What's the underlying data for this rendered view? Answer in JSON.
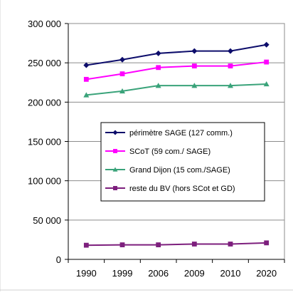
{
  "chart_data": {
    "type": "line",
    "categories": [
      "1990",
      "1999",
      "2006",
      "2009",
      "2010",
      "2020"
    ],
    "ylim": [
      0,
      300000
    ],
    "y_ticks": [
      "0",
      "50 000",
      "100 000",
      "150 000",
      "200 000",
      "250 000",
      "300 000"
    ],
    "y_tick_values": [
      0,
      50000,
      100000,
      150000,
      200000,
      250000,
      300000
    ],
    "grid": "horizontal",
    "legend_position": "center-right",
    "series": [
      {
        "name": "périmètre SAGE (127 comm.)",
        "color": "#0d0d6b",
        "marker": "diamond",
        "values": [
          247000,
          254000,
          262000,
          265000,
          265000,
          273000
        ]
      },
      {
        "name": "SCoT (59 com./ SAGE)",
        "color": "#ff00ff",
        "marker": "square",
        "values": [
          229000,
          236000,
          244000,
          246000,
          246000,
          251000
        ]
      },
      {
        "name": "Grand Dijon (15 com./SAGE)",
        "color": "#3aa37a",
        "marker": "triangle",
        "values": [
          209000,
          214000,
          221000,
          221000,
          221000,
          223000
        ]
      },
      {
        "name": "reste du BV (hors SCot et GD)",
        "color": "#7d1f7d",
        "marker": "square",
        "values": [
          18000,
          18500,
          18500,
          19500,
          19500,
          21000
        ]
      }
    ]
  }
}
